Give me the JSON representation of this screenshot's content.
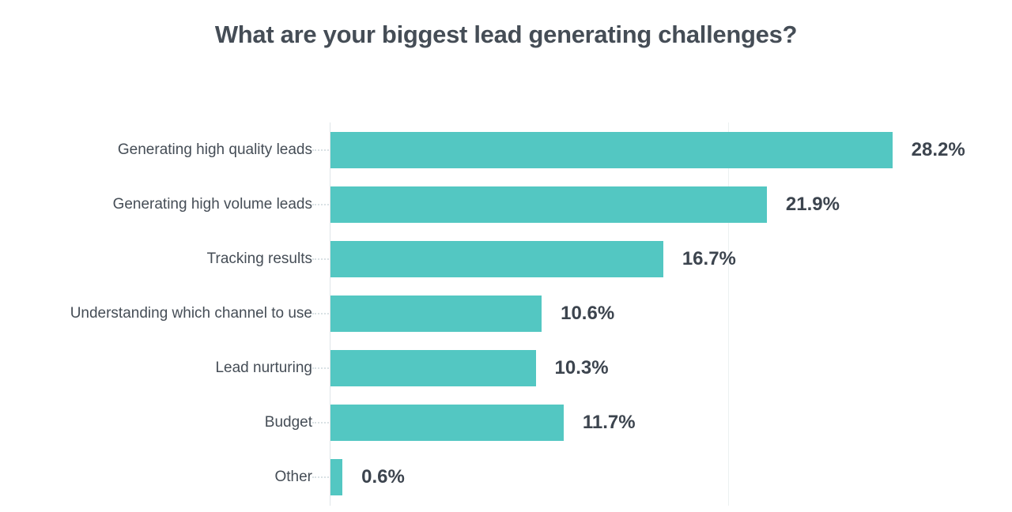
{
  "title": "What are your biggest lead generating challenges?",
  "colors": {
    "bar": "#53C7C2",
    "title_text": "#454D56",
    "category_text": "#454D56",
    "value_text": "#3C444E",
    "axis_line": "#DFE5E8",
    "tick_mark": "#D9E1E4",
    "gridline": "#ECF1F1",
    "background": "#FFFFFF"
  },
  "chart_data": {
    "type": "bar",
    "orientation": "horizontal",
    "title": "What are your biggest lead generating challenges?",
    "categories": [
      "Generating high quality leads",
      "Generating high volume leads",
      "Tracking results",
      "Understanding which channel to use",
      "Lead nurturing",
      "Budget",
      "Other"
    ],
    "values": [
      28.2,
      21.9,
      16.7,
      10.6,
      10.3,
      11.7,
      0.6
    ],
    "value_labels": [
      "28.2%",
      "21.9%",
      "16.7%",
      "10.6%",
      "10.3%",
      "11.7%",
      "0.6%"
    ],
    "xlabel": "",
    "ylabel": "",
    "xlim": [
      0,
      34.2
    ],
    "gridlines_pct": [
      20
    ],
    "grid": "single faint vertical line at 20%",
    "legend": "none",
    "value_label_position": "right of bar end"
  }
}
